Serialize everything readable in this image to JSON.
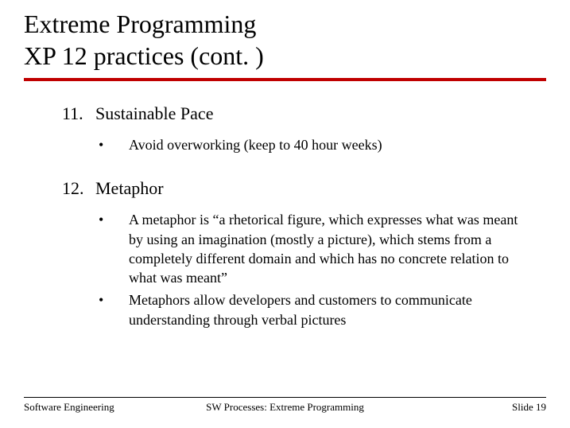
{
  "title_line1": "Extreme Programming",
  "title_line2": "XP 12 practices (cont. )",
  "rule_color": "#c00000",
  "background_color": "#ffffff",
  "text_color": "#000000",
  "title_fontsize": 32,
  "body_fontsize": 22,
  "sub_fontsize": 18,
  "footer_fontsize": 13,
  "items": [
    {
      "number": "11.",
      "label": "Sustainable Pace",
      "subs": [
        {
          "bullet": "•",
          "text": "Avoid overworking (keep to 40 hour weeks)"
        }
      ]
    },
    {
      "number": "12.",
      "label": "Metaphor",
      "subs": [
        {
          "bullet": "•",
          "text": "A metaphor is “a rhetorical figure, which expresses what was meant by using an imagination (mostly a picture), which stems from a completely different domain and which has no concrete relation to what was meant”"
        },
        {
          "bullet": "•",
          "text": "Metaphors allow developers and customers to communicate understanding through verbal pictures"
        }
      ]
    }
  ],
  "footer": {
    "left": "Software Engineering",
    "center": "SW Processes: Extreme Programming",
    "right": "Slide 19"
  }
}
